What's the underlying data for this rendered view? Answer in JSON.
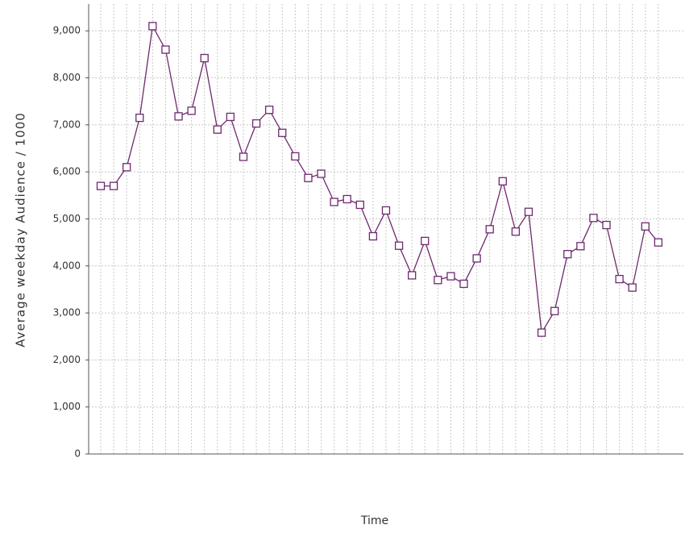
{
  "chart_data": {
    "type": "line",
    "x_label": "Time",
    "y_label": "Average weekday Audience / 1000",
    "categories": [
      null,
      null,
      null,
      null,
      null,
      null,
      null,
      null,
      null,
      null,
      null,
      null,
      null,
      null,
      null,
      null,
      null,
      null,
      null,
      null,
      null,
      null,
      null,
      null,
      null,
      null,
      null,
      null,
      null,
      null,
      null,
      null,
      null,
      null,
      null,
      null,
      null,
      null,
      null,
      null,
      null,
      null,
      null,
      null
    ],
    "series": [
      {
        "color": "#6e2a6e",
        "values": [
          5700,
          5700,
          6100,
          7150,
          9100,
          8600,
          7180,
          7300,
          8420,
          6900,
          7170,
          6320,
          7030,
          7320,
          6830,
          6330,
          5870,
          5960,
          5360,
          5420,
          5300,
          4630,
          5180,
          4430,
          3800,
          4530,
          3700,
          3780,
          3620,
          4160,
          4780,
          5800,
          4730,
          5150,
          2580,
          3040,
          4250,
          4420,
          5020,
          4870,
          3720,
          3540,
          4840,
          4500
        ]
      }
    ],
    "ylim": [
      0,
      9570
    ],
    "yticks": [
      0,
      {
        "value": 1000,
        "label": "1,000"
      },
      {
        "value": 2000,
        "label": "2,000"
      },
      {
        "value": 3000,
        "label": "3,000"
      },
      {
        "value": 4000,
        "label": "4,000"
      },
      {
        "value": 5000,
        "label": "5,000"
      },
      {
        "value": 6000,
        "label": "6,000"
      },
      {
        "value": 7000,
        "label": "7,000"
      },
      {
        "value": 8000,
        "label": "8,000"
      },
      {
        "value": 9000,
        "label": "9,000"
      }
    ],
    "grid": true
  }
}
